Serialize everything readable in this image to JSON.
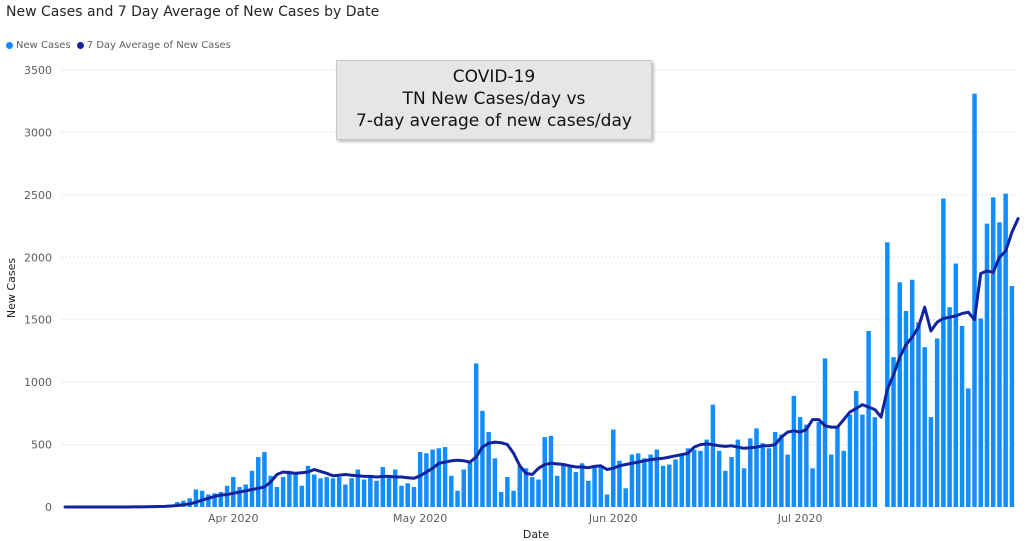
{
  "title": "New Cases and 7 Day Average of New Cases by Date",
  "legend": [
    {
      "label": "New Cases",
      "color": "#118DFF"
    },
    {
      "label": "7 Day Average of New Cases",
      "color": "#12239E"
    }
  ],
  "annotation": {
    "line1": "COVID-19",
    "line2": "TN New Cases/day vs",
    "line3": "7-day average of new cases/day"
  },
  "chart_data": {
    "type": "bar",
    "title": "New Cases and 7 Day Average of New Cases by Date",
    "xlabel": "Date",
    "ylabel": "New Cases",
    "ylim": [
      0,
      3500
    ],
    "yticks": [
      0,
      500,
      1000,
      1500,
      2000,
      2500,
      3000,
      3500
    ],
    "grid": true,
    "legend_position": "top-left",
    "x_start_date": "2020-03-05",
    "x_tick_labels": [
      {
        "label": "Apr 2020",
        "date": "2020-04-01"
      },
      {
        "label": "May 2020",
        "date": "2020-05-01"
      },
      {
        "label": "Jun 2020",
        "date": "2020-06-01"
      },
      {
        "label": "Jul 2020",
        "date": "2020-07-01"
      }
    ],
    "series": [
      {
        "name": "New Cases",
        "kind": "bar",
        "color": "#118DFF",
        "values": [
          0,
          0,
          0,
          0,
          0,
          0,
          0,
          0,
          0,
          1,
          2,
          3,
          4,
          5,
          6,
          8,
          10,
          20,
          40,
          50,
          70,
          140,
          130,
          100,
          110,
          120,
          170,
          240,
          160,
          180,
          290,
          400,
          440,
          250,
          160,
          240,
          290,
          280,
          170,
          330,
          260,
          230,
          240,
          230,
          240,
          180,
          230,
          300,
          220,
          250,
          210,
          320,
          250,
          300,
          170,
          190,
          160,
          440,
          430,
          460,
          470,
          480,
          250,
          130,
          300,
          360,
          1150,
          770,
          600,
          390,
          120,
          240,
          130,
          330,
          310,
          240,
          220,
          560,
          570,
          250,
          350,
          320,
          280,
          350,
          210,
          320,
          330,
          100,
          620,
          370,
          150,
          420,
          430,
          390,
          420,
          460,
          330,
          340,
          380,
          410,
          470,
          460,
          450,
          540,
          820,
          450,
          290,
          400,
          540,
          310,
          550,
          630,
          510,
          470,
          600,
          580,
          420,
          890,
          720,
          660,
          310,
          680,
          1190,
          420,
          640,
          450,
          740,
          930,
          740,
          1410,
          720,
          0,
          2120,
          1200,
          1800,
          1570,
          1820,
          1480,
          1280,
          720,
          1350,
          2470,
          1600,
          1950,
          1450,
          950,
          3310,
          1510,
          2270,
          2480,
          2280,
          2510,
          1770
        ]
      },
      {
        "name": "7 Day Average of New Cases",
        "kind": "line",
        "color": "#12239E",
        "values": [
          0,
          0,
          0,
          0,
          0,
          0,
          0,
          0,
          0,
          0,
          0,
          1,
          1,
          2,
          3,
          4,
          5,
          8,
          12,
          18,
          26,
          38,
          55,
          70,
          85,
          95,
          100,
          110,
          120,
          130,
          140,
          150,
          160,
          200,
          260,
          280,
          275,
          270,
          275,
          280,
          300,
          285,
          270,
          250,
          255,
          260,
          255,
          250,
          245,
          245,
          240,
          245,
          245,
          240,
          240,
          235,
          230,
          250,
          280,
          310,
          350,
          360,
          370,
          375,
          370,
          360,
          400,
          480,
          510,
          520,
          515,
          500,
          430,
          330,
          270,
          260,
          310,
          340,
          350,
          345,
          340,
          330,
          320,
          320,
          315,
          325,
          330,
          300,
          310,
          330,
          340,
          350,
          360,
          370,
          380,
          385,
          390,
          400,
          410,
          420,
          430,
          480,
          500,
          505,
          500,
          490,
          485,
          490,
          480,
          470,
          475,
          480,
          490,
          490,
          500,
          560,
          600,
          610,
          600,
          620,
          700,
          700,
          650,
          640,
          640,
          700,
          760,
          790,
          820,
          800,
          780,
          720,
          940,
          1060,
          1200,
          1300,
          1360,
          1440,
          1600,
          1410,
          1480,
          1510,
          1520,
          1530,
          1550,
          1560,
          1500,
          1870,
          1890,
          1880,
          2000,
          2050,
          2200,
          2310
        ]
      }
    ]
  }
}
